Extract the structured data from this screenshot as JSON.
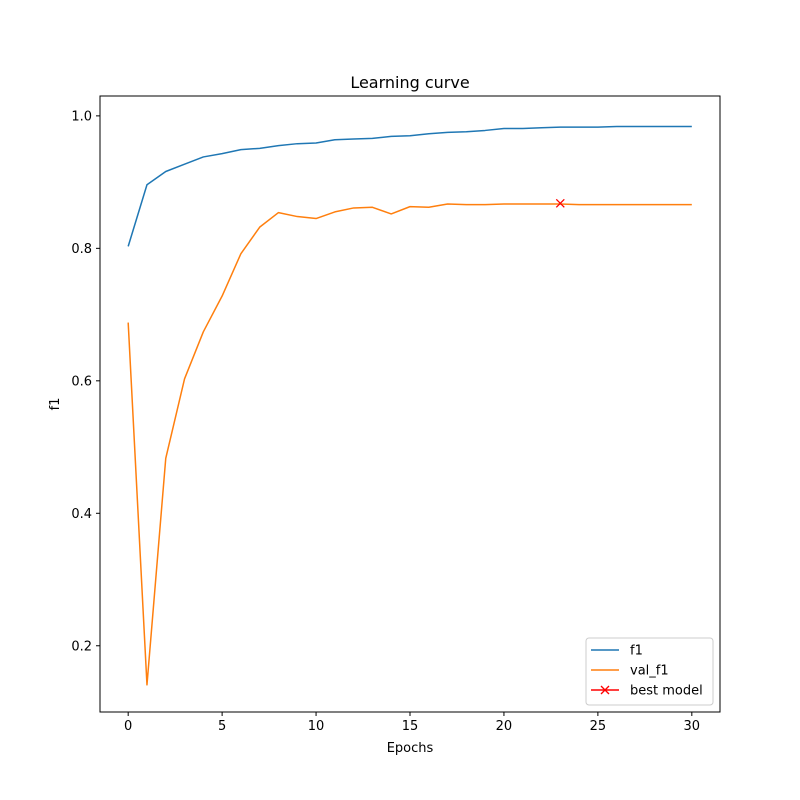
{
  "chart_data": {
    "type": "line",
    "title": "Learning curve",
    "xlabel": "Epochs",
    "ylabel": "f1",
    "xlim": [
      -1.5,
      31.5
    ],
    "ylim": [
      0.1,
      1.03
    ],
    "xticks": [
      0,
      5,
      10,
      15,
      20,
      25,
      30
    ],
    "xtick_labels": [
      "0",
      "5",
      "10",
      "15",
      "20",
      "25",
      "30"
    ],
    "yticks": [
      0.2,
      0.4,
      0.6,
      0.8,
      1.0
    ],
    "ytick_labels": [
      "0.2",
      "0.4",
      "0.6",
      "0.8",
      "1.0"
    ],
    "grid": false,
    "legend_position": "lower-right",
    "x": [
      0,
      1,
      2,
      3,
      4,
      5,
      6,
      7,
      8,
      9,
      10,
      11,
      12,
      13,
      14,
      15,
      16,
      17,
      18,
      19,
      20,
      21,
      22,
      23,
      24,
      25,
      26,
      27,
      28,
      29,
      30
    ],
    "series": [
      {
        "name": "f1",
        "color": "#1f77b4",
        "values": [
          0.803,
          0.896,
          0.916,
          0.927,
          0.938,
          0.943,
          0.949,
          0.951,
          0.955,
          0.958,
          0.959,
          0.964,
          0.965,
          0.966,
          0.969,
          0.97,
          0.973,
          0.975,
          0.976,
          0.978,
          0.981,
          0.981,
          0.982,
          0.983,
          0.983,
          0.983,
          0.984,
          0.984,
          0.984,
          0.984,
          0.984
        ]
      },
      {
        "name": "val_f1",
        "color": "#ff7f0e",
        "values": [
          0.688,
          0.141,
          0.483,
          0.603,
          0.674,
          0.728,
          0.792,
          0.832,
          0.854,
          0.848,
          0.845,
          0.855,
          0.861,
          0.862,
          0.852,
          0.863,
          0.862,
          0.867,
          0.866,
          0.866,
          0.867,
          0.867,
          0.867,
          0.867,
          0.866,
          0.866,
          0.866,
          0.866,
          0.866,
          0.866,
          0.866
        ]
      }
    ],
    "best_model": {
      "name": "best model",
      "x": 23,
      "y": 0.868,
      "color": "#ff0000",
      "marker": "x"
    }
  }
}
